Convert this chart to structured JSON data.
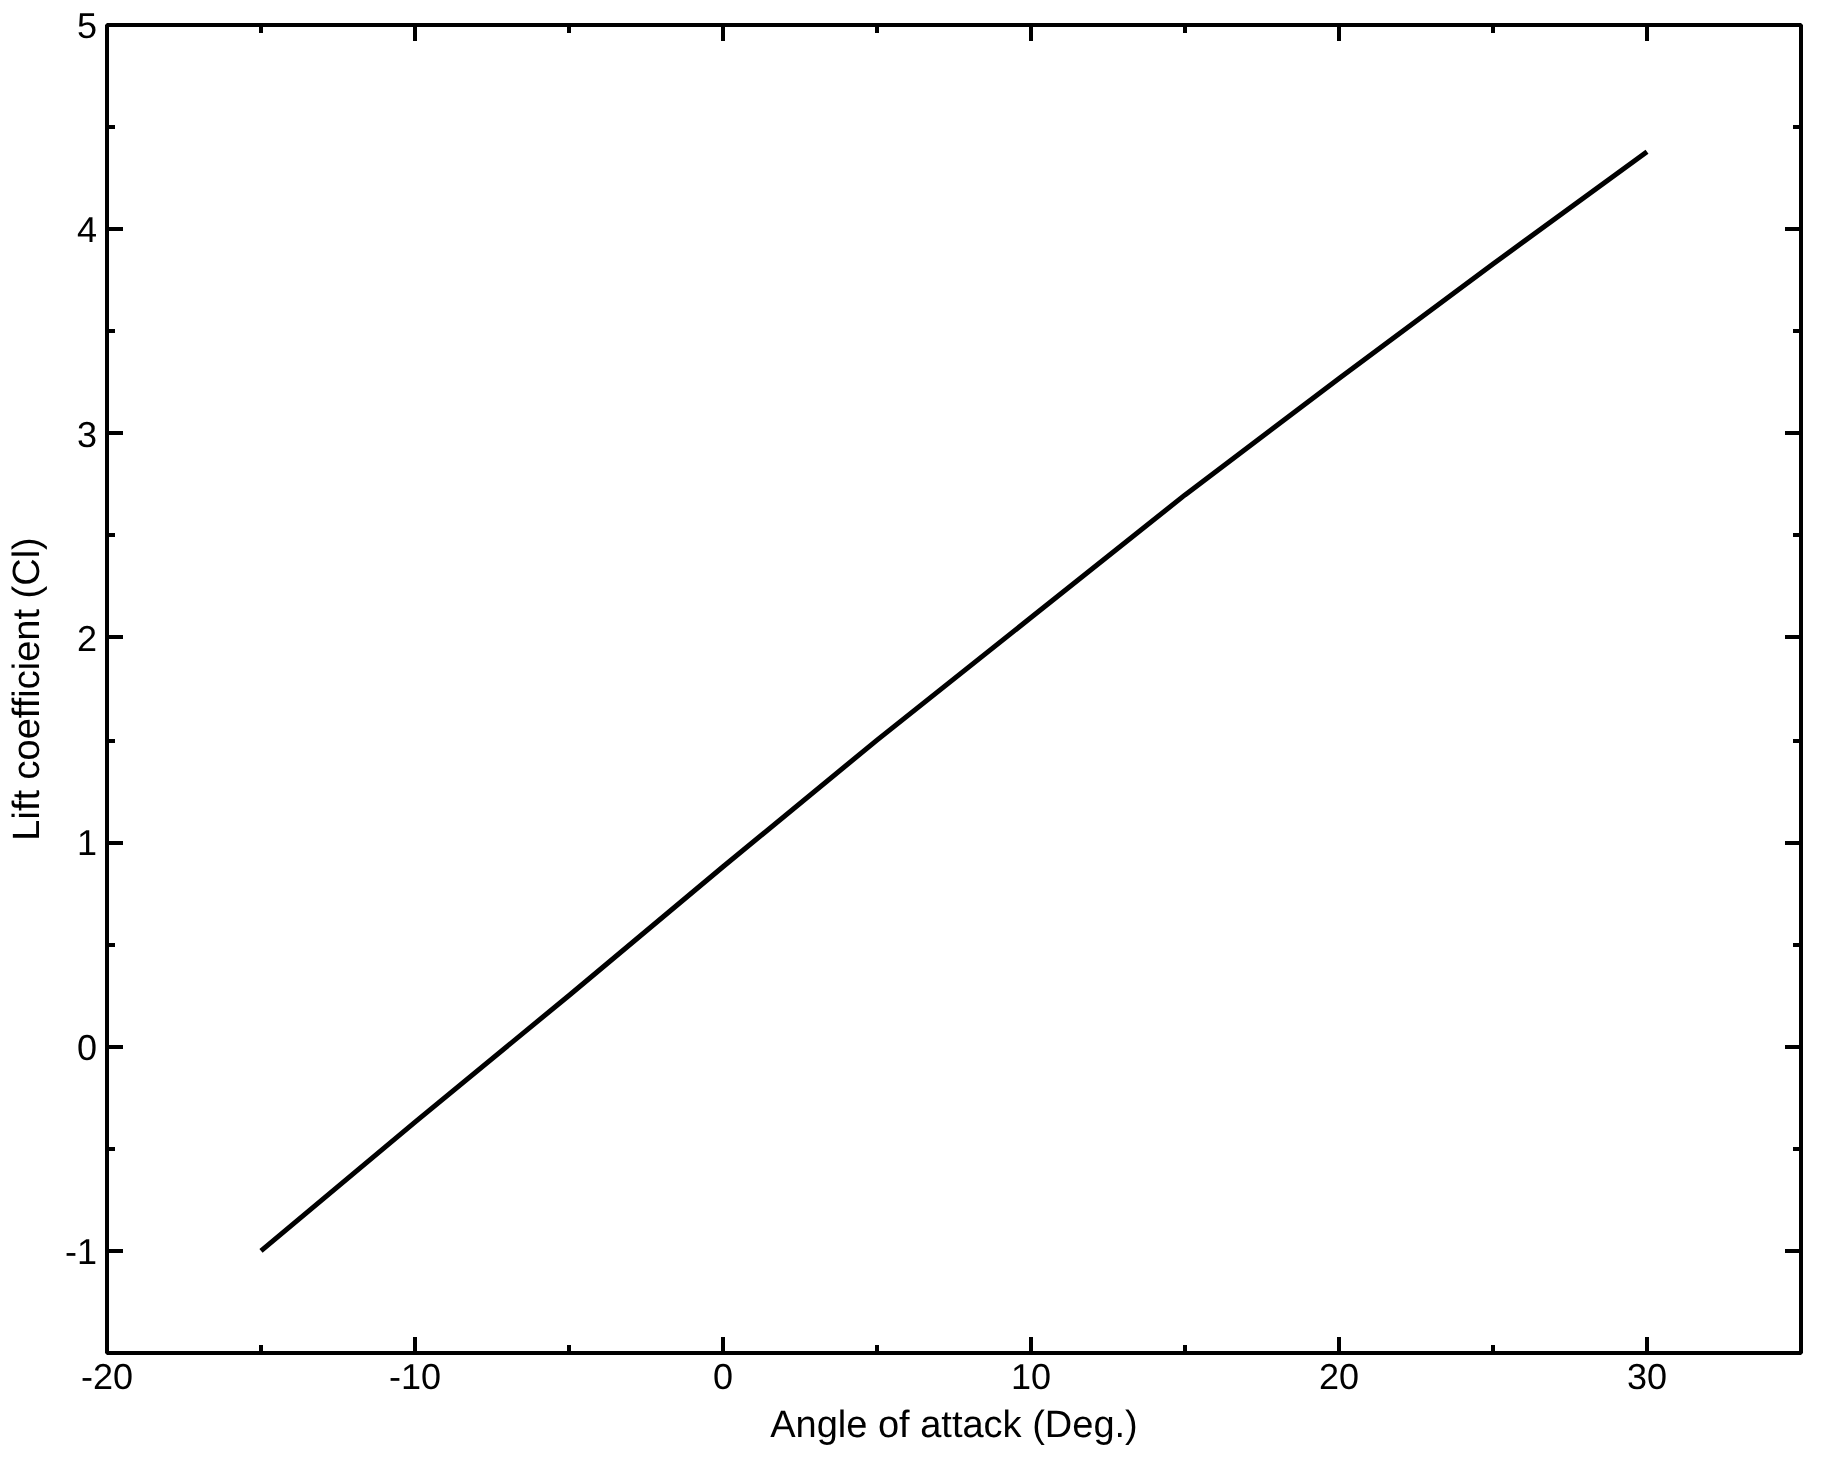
{
  "chart_data": {
    "type": "line",
    "xlabel": "Angle of attack (Deg.)",
    "ylabel": "Lift coefficient (Cl)",
    "x": [
      -15,
      -10,
      -5,
      0,
      5,
      10,
      15,
      20,
      25,
      30
    ],
    "series": [
      {
        "color": "#000000",
        "values": [
          -1,
          -0.37,
          0.25,
          0.88,
          1.5,
          2.1,
          2.7,
          3.27,
          3.83,
          4.38
        ]
      }
    ],
    "xlim": [
      -20,
      35
    ],
    "ylim": [
      -1.5,
      5
    ],
    "xticks": [
      -20,
      -10,
      0,
      10,
      20,
      30
    ],
    "yticks": [
      -1,
      0,
      1,
      2,
      3,
      4,
      5
    ],
    "grid": false,
    "marker": "none",
    "line_style": "solid"
  }
}
